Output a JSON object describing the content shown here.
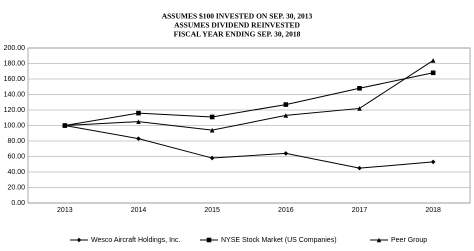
{
  "chart_data": {
    "type": "line",
    "title": [
      "ASSUMES $100 INVESTED ON SEP. 30, 2013",
      "ASSUMES DIVIDEND REINVESTED",
      "FISCAL YEAR ENDING SEP. 30, 2018"
    ],
    "categories": [
      "2013",
      "2014",
      "2015",
      "2016",
      "2017",
      "2018"
    ],
    "series": [
      {
        "name": "Wesco Aircraft Holdings, Inc.",
        "color": "#000000",
        "marker": "diamond",
        "values": [
          100,
          83,
          58,
          64,
          45,
          53
        ]
      },
      {
        "name": "NYSE Stock Market (US Companies)",
        "color": "#000000",
        "marker": "square",
        "values": [
          100,
          116,
          111,
          127,
          148,
          168
        ]
      },
      {
        "name": "Peer Group",
        "color": "#000000",
        "marker": "triangle",
        "values": [
          100,
          105,
          94,
          113,
          122,
          184
        ]
      }
    ],
    "ylim": [
      0,
      200
    ],
    "yticks": [
      {
        "value": 0,
        "label": "0.00"
      },
      {
        "value": 20,
        "label": "20.00"
      },
      {
        "value": 40,
        "label": "40.00"
      },
      {
        "value": 60,
        "label": "60.00"
      },
      {
        "value": 80,
        "label": "80.00"
      },
      {
        "value": 100,
        "label": "100.00"
      },
      {
        "value": 120,
        "label": "120.00"
      },
      {
        "value": 140,
        "label": "140.00"
      },
      {
        "value": 160,
        "label": "160.00"
      },
      {
        "value": 180,
        "label": "180.00"
      },
      {
        "value": 200,
        "label": "200.00"
      }
    ],
    "grid": true,
    "legend": "bottom"
  }
}
